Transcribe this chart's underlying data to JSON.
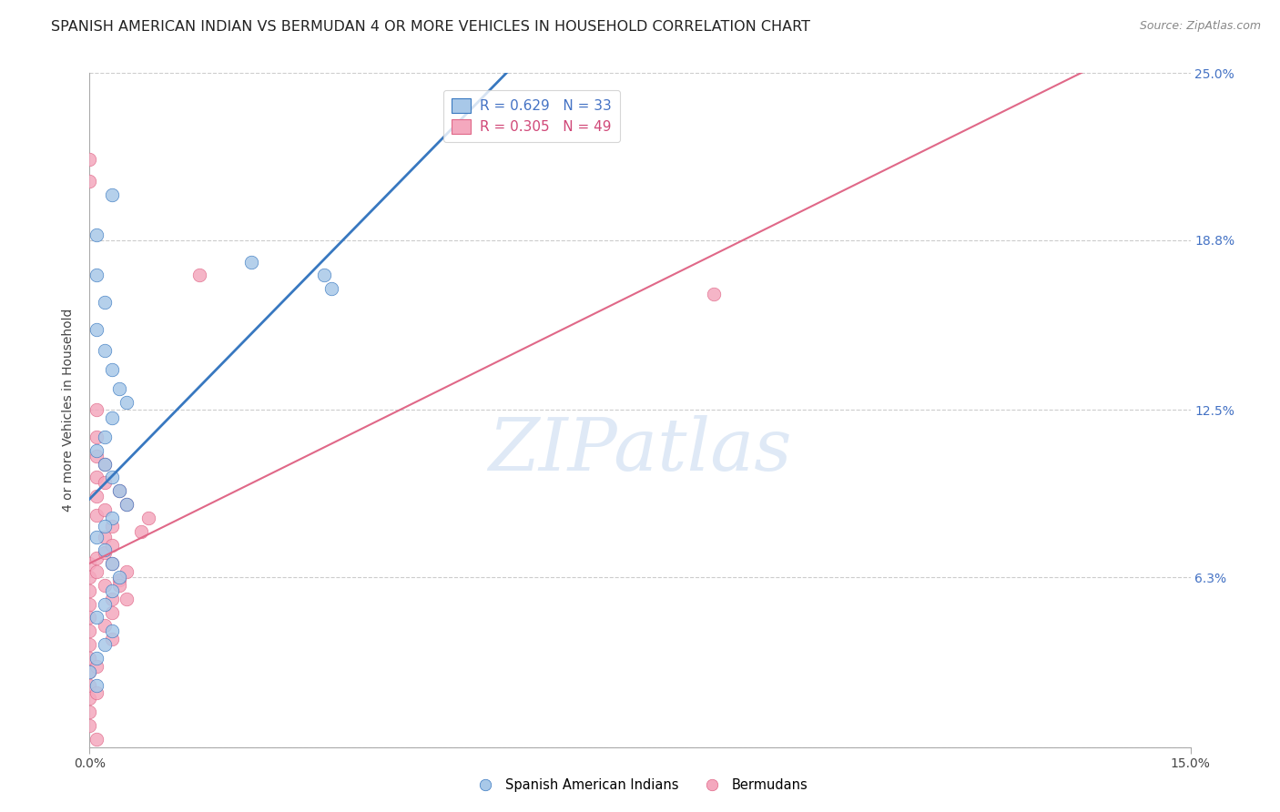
{
  "title": "SPANISH AMERICAN INDIAN VS BERMUDAN 4 OR MORE VEHICLES IN HOUSEHOLD CORRELATION CHART",
  "source": "Source: ZipAtlas.com",
  "ylabel": "4 or more Vehicles in Household",
  "xlim": [
    0.0,
    0.15
  ],
  "ylim": [
    0.0,
    0.25
  ],
  "ytick_vals": [
    0.0,
    0.063,
    0.125,
    0.188,
    0.25
  ],
  "ytick_labels": [
    "",
    "6.3%",
    "12.5%",
    "18.8%",
    "25.0%"
  ],
  "blue_R": 0.629,
  "blue_N": 33,
  "pink_R": 0.305,
  "pink_N": 49,
  "blue_color": "#a8c8e8",
  "pink_color": "#f4a8be",
  "blue_line_color": "#3878c0",
  "pink_line_color": "#e06888",
  "legend_label_blue": "Spanish American Indians",
  "legend_label_pink": "Bermudans",
  "watermark": "ZIPatlas",
  "blue_points_x": [
    0.003,
    0.001,
    0.001,
    0.002,
    0.001,
    0.002,
    0.003,
    0.004,
    0.005,
    0.003,
    0.002,
    0.001,
    0.002,
    0.003,
    0.004,
    0.005,
    0.003,
    0.002,
    0.001,
    0.002,
    0.003,
    0.004,
    0.003,
    0.002,
    0.001,
    0.003,
    0.002,
    0.001,
    0.0,
    0.001,
    0.022,
    0.032,
    0.033
  ],
  "blue_points_y": [
    0.205,
    0.19,
    0.175,
    0.165,
    0.155,
    0.147,
    0.14,
    0.133,
    0.128,
    0.122,
    0.115,
    0.11,
    0.105,
    0.1,
    0.095,
    0.09,
    0.085,
    0.082,
    0.078,
    0.073,
    0.068,
    0.063,
    0.058,
    0.053,
    0.048,
    0.043,
    0.038,
    0.033,
    0.028,
    0.023,
    0.18,
    0.175,
    0.17
  ],
  "pink_points_x": [
    0.0,
    0.0,
    0.0,
    0.0,
    0.0,
    0.0,
    0.0,
    0.0,
    0.0,
    0.0,
    0.001,
    0.001,
    0.001,
    0.001,
    0.001,
    0.001,
    0.001,
    0.001,
    0.002,
    0.002,
    0.002,
    0.002,
    0.002,
    0.003,
    0.003,
    0.003,
    0.003,
    0.004,
    0.004,
    0.005,
    0.005,
    0.007,
    0.008,
    0.015,
    0.0,
    0.0,
    0.0,
    0.0,
    0.001,
    0.001,
    0.002,
    0.002,
    0.003,
    0.003,
    0.004,
    0.005,
    0.0,
    0.001,
    0.085
  ],
  "pink_points_y": [
    0.218,
    0.21,
    0.068,
    0.063,
    0.058,
    0.053,
    0.048,
    0.043,
    0.038,
    0.033,
    0.125,
    0.115,
    0.108,
    0.1,
    0.093,
    0.086,
    0.07,
    0.065,
    0.098,
    0.088,
    0.078,
    0.072,
    0.06,
    0.082,
    0.075,
    0.068,
    0.05,
    0.095,
    0.062,
    0.09,
    0.055,
    0.08,
    0.085,
    0.175,
    0.028,
    0.023,
    0.018,
    0.013,
    0.03,
    0.02,
    0.105,
    0.045,
    0.055,
    0.04,
    0.06,
    0.065,
    0.008,
    0.003,
    0.168
  ],
  "grid_color": "#cccccc",
  "background_color": "#ffffff",
  "title_fontsize": 11.5,
  "axis_label_fontsize": 10,
  "tick_fontsize": 10,
  "tick_color_right": "#4472c4",
  "legend_R_color_blue": "#4472c4",
  "legend_R_color_pink": "#d04878"
}
